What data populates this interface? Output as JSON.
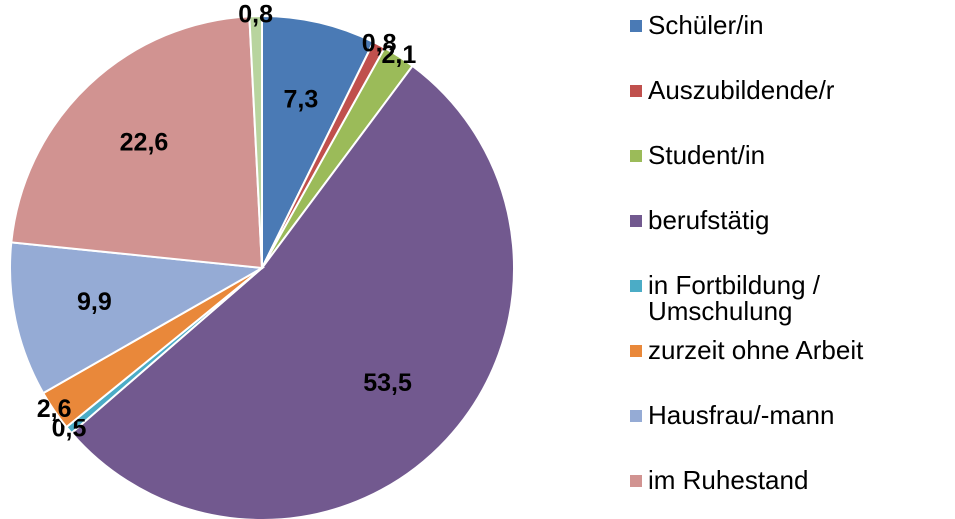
{
  "chart_data": {
    "type": "pie",
    "categories": [
      "Schüler/in",
      "Auszubildende/r",
      "Student/in",
      "berufstätig",
      "in Fortbildung / Umschulung",
      "zurzeit ohne Arbeit",
      "Hausfrau/-mann",
      "im Ruhestand",
      null
    ],
    "values": [
      7.3,
      0.8,
      2.1,
      53.5,
      0.5,
      2.6,
      9.9,
      22.6,
      0.8
    ],
    "value_labels": [
      "7,3",
      "0,8",
      "2,1",
      "53,5",
      "0,5",
      "2,6",
      "9,9",
      "22,6",
      "0,8"
    ],
    "colors": [
      "#4a7ab5",
      "#c0504d",
      "#9bbb59",
      "#72598f",
      "#4bacc6",
      "#e9883a",
      "#95abd5",
      "#d19391",
      "#b8d49e"
    ],
    "legend": "right"
  }
}
